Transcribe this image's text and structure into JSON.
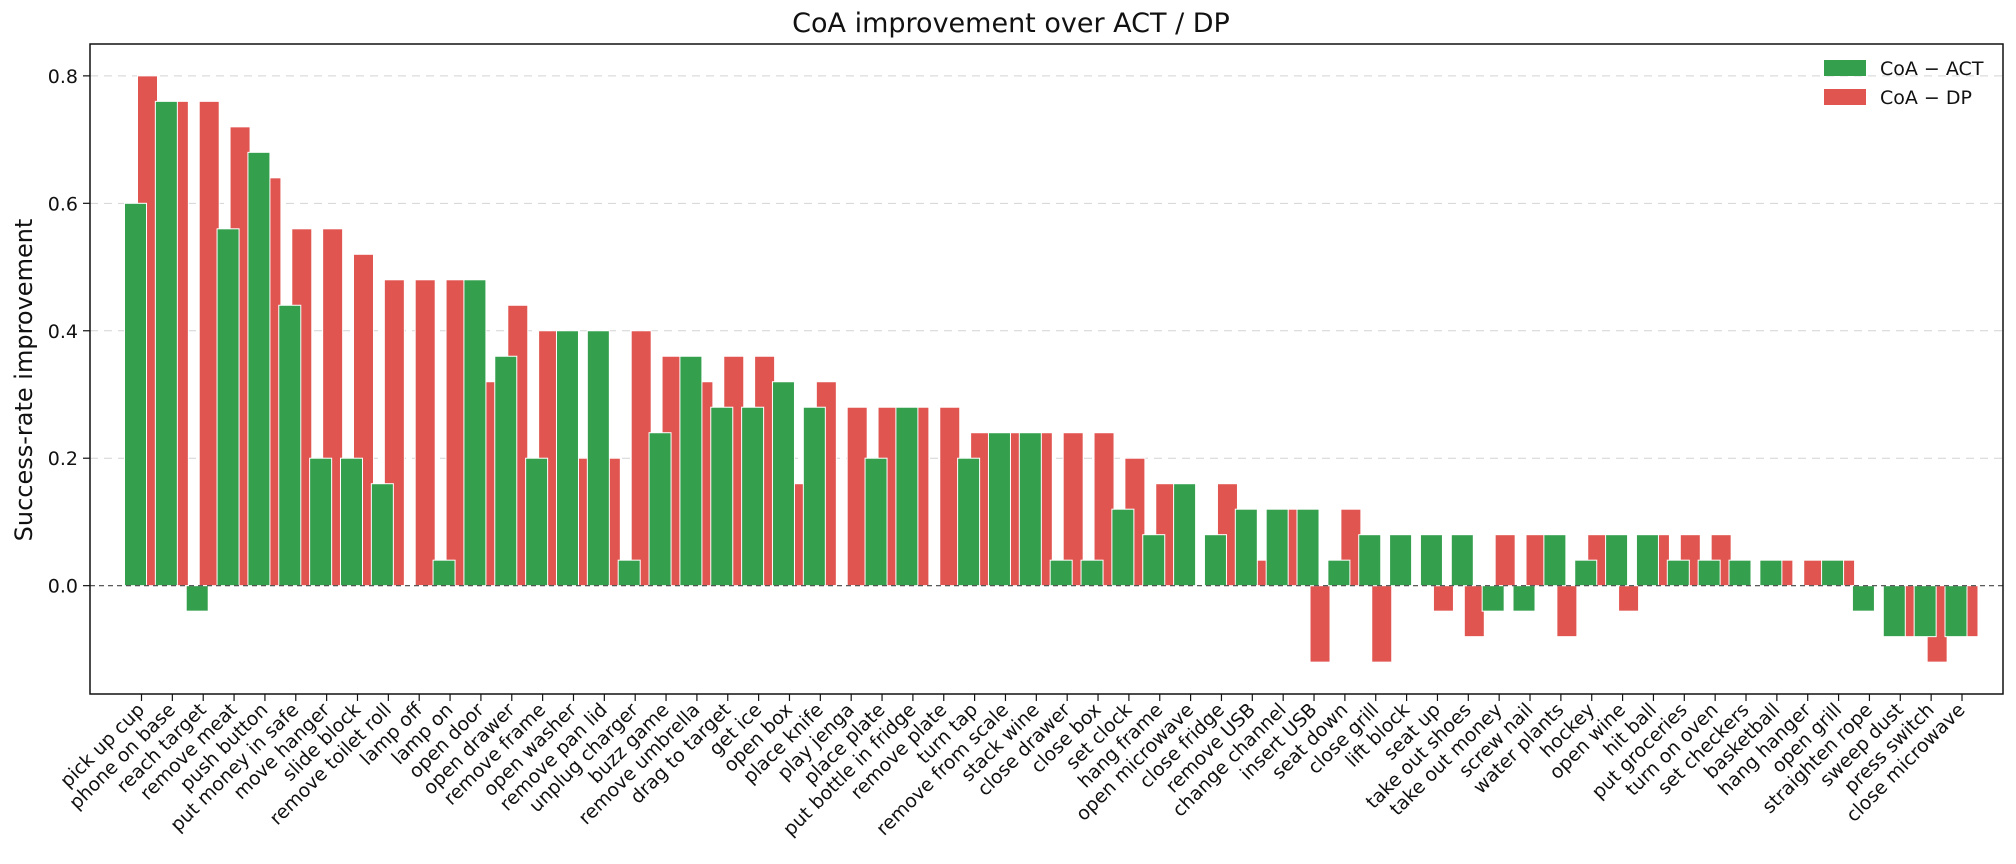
{
  "chart_data": {
    "type": "bar",
    "title": "CoA improvement over ACT / DP",
    "xlabel": "",
    "ylabel": "Success-rate improvement",
    "ylim": [
      -0.17,
      0.85
    ],
    "yticks": [
      0.0,
      0.2,
      0.4,
      0.6,
      0.8
    ],
    "ytick_labels": [
      "0.0",
      "0.2",
      "0.4",
      "0.6",
      "0.8"
    ],
    "grid": true,
    "legend_position": "top-right",
    "categories": [
      "pick up cup",
      "phone on base",
      "reach target",
      "remove meat",
      "push button",
      "put money in safe",
      "move hanger",
      "slide block",
      "remove toilet roll",
      "lamp off",
      "lamp on",
      "open door",
      "open drawer",
      "remove frame",
      "open washer",
      "remove pan lid",
      "unplug charger",
      "buzz game",
      "remove umbrella",
      "drag to target",
      "get ice",
      "open box",
      "place knife",
      "play jenga",
      "place plate",
      "put bottle in fridge",
      "remove plate",
      "turn tap",
      "remove from scale",
      "stack wine",
      "close drawer",
      "close box",
      "set clock",
      "hang frame",
      "open microwave",
      "close fridge",
      "remove USB",
      "change channel",
      "insert USB",
      "seat down",
      "close grill",
      "lift block",
      "seat up",
      "take out shoes",
      "take out money",
      "screw nail",
      "water plants",
      "hockey",
      "open wine",
      "hit ball",
      "put groceries",
      "turn on oven",
      "set checkers",
      "basketball",
      "hang hanger",
      "open grill",
      "straighten rope",
      "sweep dust",
      "press switch",
      "close microwave"
    ],
    "series": [
      {
        "name": "CoA − ACT",
        "color": "#34a04d",
        "values": [
          0.6,
          0.76,
          -0.04,
          0.56,
          0.68,
          0.44,
          0.2,
          0.2,
          0.16,
          0.0,
          0.04,
          0.48,
          0.36,
          0.2,
          0.4,
          0.4,
          0.04,
          0.24,
          0.36,
          0.28,
          0.28,
          0.32,
          0.28,
          0.0,
          0.2,
          0.28,
          0.0,
          0.2,
          0.24,
          0.24,
          0.04,
          0.04,
          0.12,
          0.08,
          0.16,
          0.08,
          0.12,
          0.12,
          0.12,
          0.04,
          0.08,
          0.08,
          0.08,
          0.08,
          -0.04,
          -0.04,
          0.08,
          0.04,
          0.08,
          0.08,
          0.04,
          0.04,
          0.04,
          0.04,
          0.0,
          0.04,
          -0.04,
          -0.08,
          -0.08,
          -0.08
        ]
      },
      {
        "name": "CoA − DP",
        "color": "#e15550",
        "values": [
          0.8,
          0.76,
          0.76,
          0.72,
          0.64,
          0.56,
          0.56,
          0.52,
          0.48,
          0.48,
          0.48,
          0.32,
          0.44,
          0.4,
          0.2,
          0.2,
          0.4,
          0.36,
          0.32,
          0.36,
          0.36,
          0.16,
          0.32,
          0.28,
          0.28,
          0.28,
          0.28,
          0.24,
          0.24,
          0.24,
          0.24,
          0.24,
          0.2,
          0.16,
          0.0,
          0.16,
          0.04,
          0.12,
          -0.12,
          0.12,
          -0.12,
          0.0,
          -0.04,
          -0.08,
          0.08,
          0.08,
          -0.08,
          0.08,
          -0.04,
          0.08,
          0.08,
          0.08,
          0.0,
          0.04,
          0.04,
          0.04,
          0.0,
          -0.08,
          -0.12,
          -0.08
        ]
      }
    ]
  }
}
